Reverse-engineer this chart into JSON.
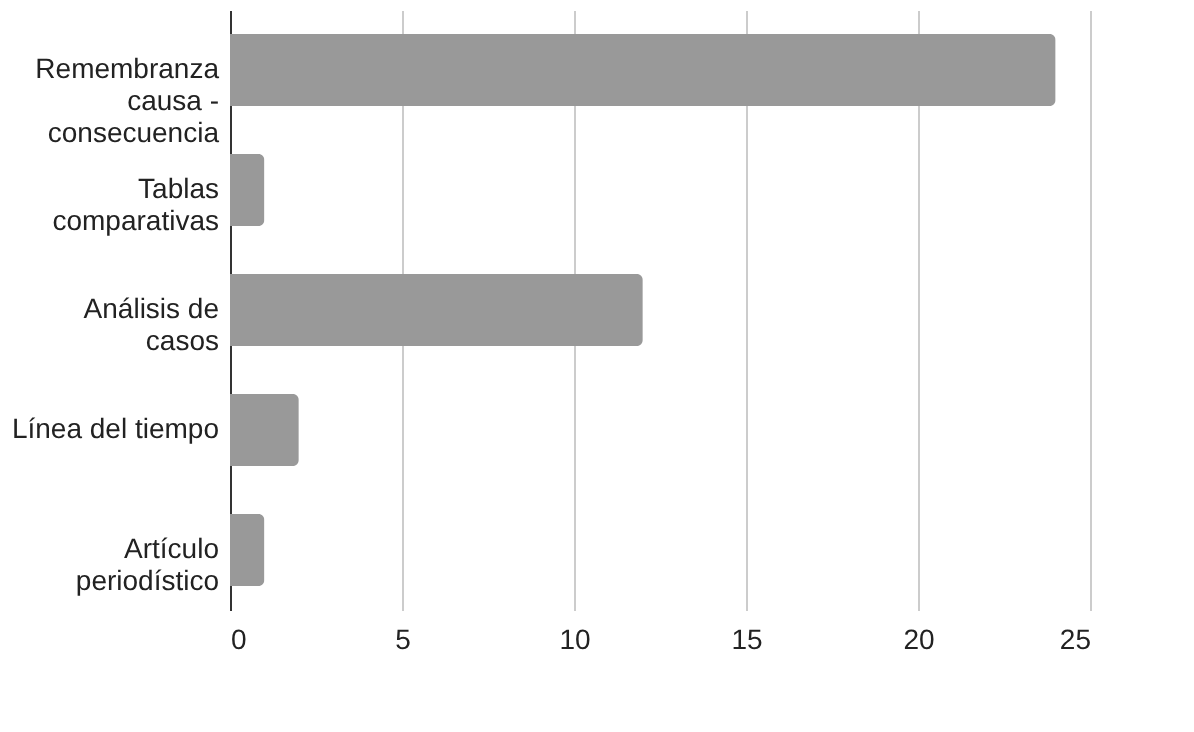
{
  "chart_data": {
    "type": "bar",
    "orientation": "horizontal",
    "categories": [
      "Remembranza causa - consecuencia",
      "Tablas comparativas",
      "Análisis de casos",
      "Línea del tiempo",
      "Artículo periodístico"
    ],
    "values": [
      24,
      1,
      12,
      2,
      1
    ],
    "color": "#999999",
    "xlim": [
      0,
      25
    ],
    "xticks": [
      0,
      5,
      10,
      15,
      20,
      25
    ],
    "grid": "x"
  }
}
